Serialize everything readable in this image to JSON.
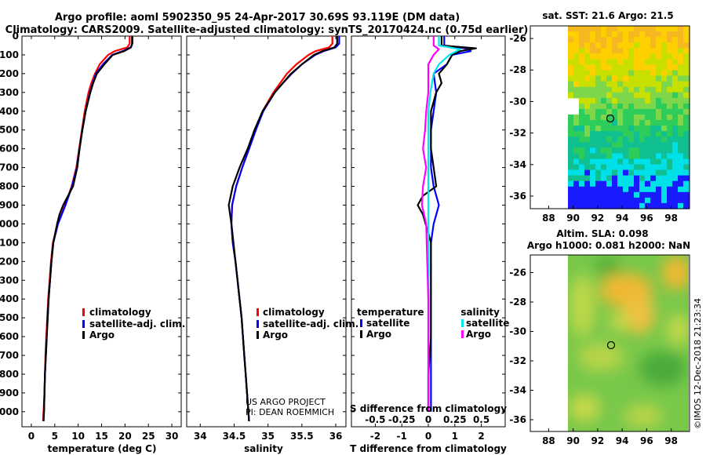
{
  "header": {
    "line1": "Argo profile: aoml 5902350_95 24-Apr-2017 30.69S 93.119E (DM data)",
    "line2": "Climatology: CARS2009. Satellite-adjusted climatology: synTS_20170424.nc (0.75d earlier)"
  },
  "colors": {
    "climatology": "#ff0000",
    "satellite": "#0000ff",
    "argo": "#000000",
    "salinity_sat": "#00e5ee",
    "salinity_argo": "#ff00ff"
  },
  "chart_data": [
    {
      "type": "line",
      "id": "temperature",
      "xlabel": "temperature (deg C)",
      "ylabel": "",
      "xlim": [
        -2,
        32
      ],
      "ylim": [
        2080,
        0
      ],
      "xticks": [
        "0",
        "5",
        "10",
        "15",
        "20",
        "25",
        "30"
      ],
      "xtick_values": [
        0,
        5,
        10,
        15,
        20,
        25,
        30
      ],
      "yticks": [
        "0",
        "100",
        "200",
        "300",
        "400",
        "500",
        "600",
        "700",
        "800",
        "900",
        "1000",
        "1100",
        "1200",
        "1300",
        "1400",
        "1500",
        "1600",
        "1700",
        "1800",
        "1900",
        "2000"
      ],
      "legend": [
        "climatology",
        "satellite-adj. clim.",
        "Argo"
      ],
      "series": [
        {
          "name": "climatology",
          "depth": [
            0,
            40,
            60,
            80,
            100,
            150,
            200,
            250,
            300,
            400,
            500,
            600,
            700,
            800,
            900,
            1000,
            1100,
            1200,
            1300,
            1400,
            1500,
            1600,
            1700,
            1800,
            1900,
            2000,
            2050
          ],
          "values": [
            21.0,
            21.0,
            20.5,
            17.8,
            16.4,
            14.6,
            13.6,
            12.8,
            12.2,
            11.4,
            10.8,
            10.2,
            9.6,
            8.6,
            7.2,
            5.6,
            4.6,
            4.2,
            3.9,
            3.6,
            3.4,
            3.2,
            3.0,
            2.9,
            2.8,
            2.6,
            2.5
          ]
        },
        {
          "name": "satellite-adj. clim.",
          "depth": [
            0,
            40,
            60,
            80,
            100,
            150,
            200,
            250,
            300,
            400,
            500,
            600,
            700,
            800,
            900,
            1000,
            1100,
            1200,
            1300,
            1400,
            1500,
            1600,
            1700,
            1800,
            1900,
            2000,
            2050
          ],
          "values": [
            21.6,
            21.6,
            21.2,
            19.5,
            17.3,
            15.3,
            13.8,
            13.1,
            12.5,
            11.6,
            10.9,
            10.3,
            9.7,
            8.7,
            7.3,
            5.7,
            4.7,
            4.3,
            4.0,
            3.7,
            3.5,
            3.3,
            3.1,
            2.9,
            2.8,
            2.7,
            2.6
          ]
        },
        {
          "name": "Argo",
          "depth": [
            0,
            40,
            60,
            80,
            100,
            150,
            200,
            250,
            300,
            400,
            500,
            600,
            700,
            800,
            900,
            950,
            1000,
            1100,
            1200,
            1300,
            1400,
            1500,
            1600,
            1700,
            1800,
            1900,
            2000,
            2050
          ],
          "values": [
            21.5,
            21.5,
            21.3,
            19.8,
            17.4,
            15.6,
            14.0,
            13.2,
            12.6,
            11.6,
            10.9,
            10.3,
            9.8,
            8.9,
            6.8,
            6.0,
            5.5,
            4.7,
            4.3,
            4.0,
            3.7,
            3.5,
            3.3,
            3.1,
            2.9,
            2.8,
            2.7,
            2.6
          ]
        }
      ]
    },
    {
      "type": "line",
      "id": "salinity",
      "xlabel": "salinity",
      "xlim": [
        33.8,
        36.15
      ],
      "ylim": [
        2080,
        0
      ],
      "xticks": [
        "34",
        "34.5",
        "35",
        "35.5",
        "36"
      ],
      "xtick_values": [
        34,
        34.5,
        35,
        35.5,
        36
      ],
      "legend": [
        "climatology",
        "satellite-adj. clim.",
        "Argo"
      ],
      "annotation": [
        "US ARGO PROJECT",
        "PI: DEAN ROEMMICH"
      ],
      "series": [
        {
          "name": "climatology",
          "depth": [
            0,
            40,
            60,
            80,
            100,
            150,
            200,
            250,
            300,
            400,
            500,
            600,
            700,
            800,
            900,
            1000,
            1100,
            1200,
            1300,
            1400,
            1500,
            1600,
            1700,
            1800,
            1900,
            2000,
            2050
          ],
          "values": [
            35.95,
            35.95,
            35.9,
            35.7,
            35.6,
            35.42,
            35.28,
            35.18,
            35.08,
            34.92,
            34.82,
            34.72,
            34.62,
            34.53,
            34.47,
            34.46,
            34.48,
            34.52,
            34.55,
            34.58,
            34.61,
            34.63,
            34.65,
            34.67,
            34.69,
            34.71,
            34.72
          ]
        },
        {
          "name": "satellite-adj. clim.",
          "depth": [
            0,
            40,
            60,
            80,
            100,
            150,
            200,
            250,
            300,
            400,
            500,
            600,
            700,
            800,
            900,
            1000,
            1100,
            1200,
            1300,
            1400,
            1500,
            1600,
            1700,
            1800,
            1900,
            2000,
            2050
          ],
          "values": [
            36.05,
            36.05,
            36.0,
            35.82,
            35.7,
            35.5,
            35.35,
            35.22,
            35.1,
            34.93,
            34.82,
            34.72,
            34.62,
            34.53,
            34.47,
            34.46,
            34.48,
            34.52,
            34.55,
            34.58,
            34.61,
            34.63,
            34.65,
            34.67,
            34.69,
            34.71,
            34.72
          ]
        },
        {
          "name": "Argo",
          "depth": [
            0,
            40,
            60,
            80,
            100,
            150,
            200,
            250,
            300,
            400,
            500,
            600,
            700,
            800,
            900,
            950,
            1000,
            1100,
            1200,
            1300,
            1400,
            1500,
            1600,
            1700,
            1800,
            1900,
            2000,
            2050
          ],
          "values": [
            36.02,
            36.02,
            35.98,
            35.8,
            35.68,
            35.5,
            35.34,
            35.22,
            35.1,
            34.92,
            34.8,
            34.7,
            34.58,
            34.48,
            34.42,
            34.44,
            34.46,
            34.49,
            34.52,
            34.55,
            34.58,
            34.61,
            34.63,
            34.65,
            34.67,
            34.69,
            34.71,
            34.72
          ]
        }
      ]
    },
    {
      "type": "line",
      "id": "difference",
      "xlabel": "T difference from climatology",
      "xlabel_top": "S difference from climatology",
      "xlim": [
        -2.9,
        2.9
      ],
      "ylim": [
        2080,
        0
      ],
      "xticks": [
        "-2",
        "-1",
        "0",
        "1",
        "2"
      ],
      "xtick_values": [
        -2,
        -1,
        0,
        1,
        2
      ],
      "xticks_top": [
        "-0.5",
        "-0.25",
        "0",
        "0.25",
        "0.5"
      ],
      "xtick_top_values": [
        -0.5,
        -0.25,
        0,
        0.25,
        0.5
      ],
      "legend_left_title": "temperature",
      "legend_right_title": "salinity",
      "legend": [
        "satellite",
        "Argo"
      ],
      "series": [
        {
          "name": "temperature satellite",
          "depth": [
            0,
            50,
            65,
            80,
            100,
            150,
            200,
            300,
            400,
            500,
            600,
            700,
            800,
            900,
            1000,
            1100,
            1200,
            1400,
            1600,
            1800,
            2000
          ],
          "values": [
            0.6,
            0.6,
            1.4,
            1.6,
            0.9,
            0.7,
            0.2,
            0.3,
            0.2,
            0.1,
            0.1,
            0.1,
            0.2,
            0.4,
            0.2,
            0.1,
            0.1,
            0.1,
            0.1,
            0.1,
            0.1
          ]
        },
        {
          "name": "temperature Argo",
          "depth": [
            0,
            50,
            65,
            80,
            100,
            150,
            200,
            250,
            300,
            400,
            500,
            600,
            700,
            800,
            850,
            900,
            950,
            1000,
            1050,
            1100,
            1200,
            1400,
            1600,
            1800,
            2000
          ],
          "values": [
            0.5,
            0.5,
            1.8,
            1.2,
            0.9,
            0.7,
            0.4,
            0.5,
            0.3,
            0.1,
            0.1,
            0.1,
            0.2,
            0.3,
            -0.2,
            -0.4,
            -0.2,
            -0.1,
            0.0,
            0.1,
            0.1,
            0.1,
            0.1,
            0.0,
            0.0
          ]
        },
        {
          "name": "salinity satellite",
          "depth": [
            0,
            50,
            70,
            100,
            150,
            200,
            300,
            400,
            500,
            600,
            800,
            1000,
            1200,
            1400,
            1600,
            1800,
            2000
          ],
          "values": [
            0.1,
            0.1,
            0.3,
            0.2,
            0.1,
            0.05,
            0.02,
            0.0,
            0.0,
            0.0,
            0.0,
            0.0,
            0.0,
            0.0,
            0.0,
            0.0,
            0.0
          ]
        },
        {
          "name": "salinity Argo",
          "depth": [
            0,
            50,
            70,
            100,
            150,
            200,
            300,
            400,
            500,
            600,
            700,
            800,
            900,
            1000,
            1200,
            1400,
            1600,
            1800,
            2000
          ],
          "values": [
            0.05,
            0.05,
            0.1,
            0.05,
            0.0,
            0.0,
            0.0,
            -0.02,
            -0.03,
            -0.05,
            -0.02,
            -0.05,
            -0.06,
            -0.02,
            -0.01,
            0.0,
            0.0,
            0.0,
            0.0
          ]
        }
      ]
    },
    {
      "type": "heatmap",
      "id": "sst-map",
      "title": "sat. SST: 21.6 Argo: 21.5",
      "xticks": [
        "88",
        "90",
        "92",
        "94",
        "96",
        "98"
      ],
      "yticks": [
        "-26",
        "-28",
        "-30",
        "-32",
        "-34",
        "-36"
      ],
      "xlim": [
        86.5,
        99.5
      ],
      "ylim": [
        -36.8,
        -25.2
      ],
      "marker": {
        "lon": 93.119,
        "lat": -30.69
      }
    },
    {
      "type": "heatmap",
      "id": "sla-map",
      "title": "Altim. SLA: 0.098",
      "subtitle": "Argo h1000: 0.081 h2000: NaN",
      "xticks": [
        "88",
        "90",
        "92",
        "94",
        "96",
        "98"
      ],
      "yticks": [
        "-26",
        "-28",
        "-30",
        "-32",
        "-34",
        "-36"
      ],
      "xlim": [
        86.5,
        99.5
      ],
      "ylim": [
        -36.8,
        -24.8
      ],
      "marker": {
        "lon": 93.119,
        "lat": -30.69
      }
    }
  ],
  "watermark": "©IMOS 12-Dec-2018 21:23:34"
}
